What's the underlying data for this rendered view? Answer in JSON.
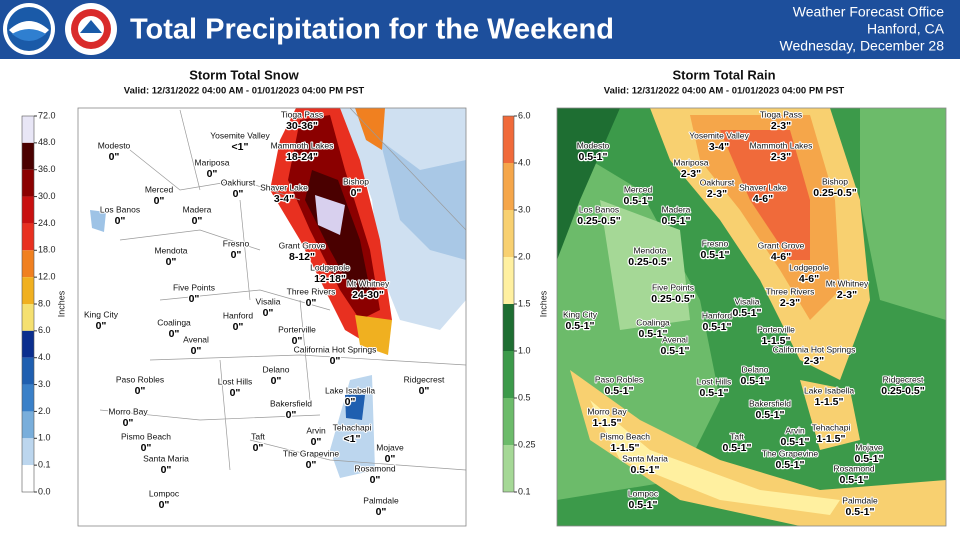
{
  "header": {
    "title": "Total Precipitation for the Weekend",
    "office": "Weather Forecast Office",
    "location": "Hanford, CA",
    "date": "Wednesday, December 28"
  },
  "panels": [
    {
      "title": "Storm Total Snow",
      "valid": "Valid: 12/31/2022 04:00 AM - 01/01/2023 04:00 PM PST",
      "colorbar_label": "Inches",
      "colorbar_ticks": [
        "72.0",
        "48.0",
        "36.0",
        "30.0",
        "24.0",
        "18.0",
        "12.0",
        "8.0",
        "6.0",
        "4.0",
        "3.0",
        "2.0",
        "1.0",
        "0.1",
        "0.0"
      ],
      "locations": [
        {
          "name": "Tioga Pass",
          "amount": "30-36\""
        },
        {
          "name": "Yosemite Valley",
          "amount": "<1\""
        },
        {
          "name": "Mammoth Lakes",
          "amount": "18-24\""
        },
        {
          "name": "Modesto",
          "amount": "0\""
        },
        {
          "name": "Mariposa",
          "amount": "0\""
        },
        {
          "name": "Bishop",
          "amount": "0\""
        },
        {
          "name": "Merced",
          "amount": "0\""
        },
        {
          "name": "Oakhurst",
          "amount": "0\""
        },
        {
          "name": "Shaver Lake",
          "amount": "3-4\""
        },
        {
          "name": "Los Banos",
          "amount": "0\""
        },
        {
          "name": "Madera",
          "amount": "0\""
        },
        {
          "name": "Fresno",
          "amount": "0\""
        },
        {
          "name": "Grant Grove",
          "amount": "8-12\""
        },
        {
          "name": "Mendota",
          "amount": "0\""
        },
        {
          "name": "Lodgepole",
          "amount": "12-18\""
        },
        {
          "name": "Mt Whitney",
          "amount": "24-30\""
        },
        {
          "name": "Five Points",
          "amount": "0\""
        },
        {
          "name": "Three Rivers",
          "amount": "0\""
        },
        {
          "name": "King City",
          "amount": "0\""
        },
        {
          "name": "Visalia",
          "amount": "0\""
        },
        {
          "name": "Hanford",
          "amount": "0\""
        },
        {
          "name": "Coalinga",
          "amount": "0\""
        },
        {
          "name": "Porterville",
          "amount": "0\""
        },
        {
          "name": "Avenal",
          "amount": "0\""
        },
        {
          "name": "California Hot Springs",
          "amount": "0\""
        },
        {
          "name": "Delano",
          "amount": "0\""
        },
        {
          "name": "Paso Robles",
          "amount": "0\""
        },
        {
          "name": "Lost Hills",
          "amount": "0\""
        },
        {
          "name": "Ridgecrest",
          "amount": "0\""
        },
        {
          "name": "Lake Isabella",
          "amount": "0\""
        },
        {
          "name": "Morro Bay",
          "amount": "0\""
        },
        {
          "name": "Bakersfield",
          "amount": "0\""
        },
        {
          "name": "Pismo Beach",
          "amount": "0\""
        },
        {
          "name": "Arvin",
          "amount": "0\""
        },
        {
          "name": "Tehachapi",
          "amount": "<1\""
        },
        {
          "name": "Taft",
          "amount": "0\""
        },
        {
          "name": "Mojave",
          "amount": "0\""
        },
        {
          "name": "The Grapevine",
          "amount": "0\""
        },
        {
          "name": "Santa Maria",
          "amount": "0\""
        },
        {
          "name": "Rosamond",
          "amount": "0\""
        },
        {
          "name": "Lompoc",
          "amount": "0\""
        },
        {
          "name": "Palmdale",
          "amount": "0\""
        }
      ]
    },
    {
      "title": "Storm Total Rain",
      "valid": "Valid: 12/31/2022 04:00 AM - 01/01/2023 04:00 PM PST",
      "colorbar_label": "Inches",
      "colorbar_ticks": [
        "6.0",
        "4.0",
        "3.0",
        "2.0",
        "1.5",
        "1.0",
        "0.5",
        "0.25",
        "0.1"
      ],
      "locations": [
        {
          "name": "Tioga Pass",
          "amount": "2-3\""
        },
        {
          "name": "Yosemite Valley",
          "amount": "3-4\""
        },
        {
          "name": "Mammoth Lakes",
          "amount": "2-3\""
        },
        {
          "name": "Modesto",
          "amount": "0.5-1\""
        },
        {
          "name": "Mariposa",
          "amount": "2-3\""
        },
        {
          "name": "Bishop",
          "amount": "0.25-0.5\""
        },
        {
          "name": "Merced",
          "amount": "0.5-1\""
        },
        {
          "name": "Oakhurst",
          "amount": "2-3\""
        },
        {
          "name": "Shaver Lake",
          "amount": "4-6\""
        },
        {
          "name": "Los Banos",
          "amount": "0.25-0.5\""
        },
        {
          "name": "Madera",
          "amount": "0.5-1\""
        },
        {
          "name": "Fresno",
          "amount": "0.5-1\""
        },
        {
          "name": "Grant Grove",
          "amount": "4-6\""
        },
        {
          "name": "Mendota",
          "amount": "0.25-0.5\""
        },
        {
          "name": "Lodgepole",
          "amount": "4-6\""
        },
        {
          "name": "Mt Whitney",
          "amount": "2-3\""
        },
        {
          "name": "Five Points",
          "amount": "0.25-0.5\""
        },
        {
          "name": "Three Rivers",
          "amount": "2-3\""
        },
        {
          "name": "King City",
          "amount": "0.5-1\""
        },
        {
          "name": "Visalia",
          "amount": "0.5-1\""
        },
        {
          "name": "Hanford",
          "amount": "0.5-1\""
        },
        {
          "name": "Coalinga",
          "amount": "0.5-1\""
        },
        {
          "name": "Porterville",
          "amount": "1-1.5\""
        },
        {
          "name": "Avenal",
          "amount": "0.5-1\""
        },
        {
          "name": "California Hot Springs",
          "amount": "2-3\""
        },
        {
          "name": "Delano",
          "amount": "0.5-1\""
        },
        {
          "name": "Paso Robles",
          "amount": "0.5-1\""
        },
        {
          "name": "Lost Hills",
          "amount": "0.5-1\""
        },
        {
          "name": "Ridgecrest",
          "amount": "0.25-0.5\""
        },
        {
          "name": "Lake Isabella",
          "amount": "1-1.5\""
        },
        {
          "name": "Morro Bay",
          "amount": "1-1.5\""
        },
        {
          "name": "Bakersfield",
          "amount": "0.5-1\""
        },
        {
          "name": "Pismo Beach",
          "amount": "1-1.5\""
        },
        {
          "name": "Arvin",
          "amount": "0.5-1\""
        },
        {
          "name": "Tehachapi",
          "amount": "1-1.5\""
        },
        {
          "name": "Taft",
          "amount": "0.5-1\""
        },
        {
          "name": "Mojave",
          "amount": "0.5-1\""
        },
        {
          "name": "The Grapevine",
          "amount": "0.5-1\""
        },
        {
          "name": "Santa Maria",
          "amount": "0.5-1\""
        },
        {
          "name": "Rosamond",
          "amount": "0.5-1\""
        },
        {
          "name": "Lompoc",
          "amount": "0.5-1\""
        },
        {
          "name": "Palmdale",
          "amount": "0.5-1\""
        }
      ]
    }
  ]
}
